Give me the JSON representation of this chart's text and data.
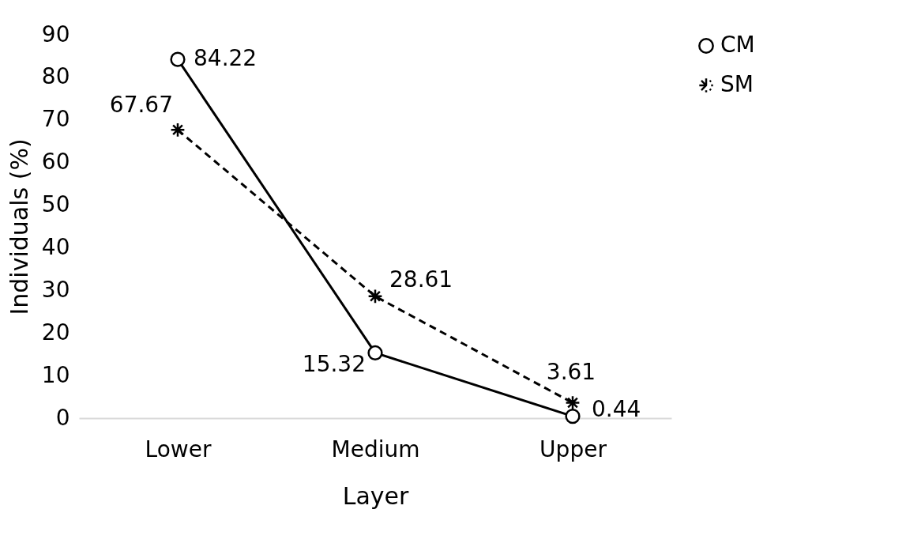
{
  "chart_data": {
    "type": "line",
    "xlabel": "Layer",
    "ylabel": "Individuals (%)",
    "categories": [
      "Lower",
      "Medium",
      "Upper"
    ],
    "series": [
      {
        "name": "CM",
        "color": "#000000",
        "values": [
          84.22,
          15.32,
          0.44
        ],
        "marker": "circle",
        "line_style": "solid"
      },
      {
        "name": "SM",
        "color": "#000000",
        "values": [
          67.67,
          28.61,
          3.61
        ],
        "marker": "cross",
        "line_style": "dashed"
      }
    ],
    "ylim": [
      0,
      90
    ],
    "yticks": [
      0,
      10,
      20,
      30,
      40,
      50,
      60,
      70,
      80,
      90
    ],
    "grid": false,
    "legend": "right",
    "data_labels": true
  }
}
